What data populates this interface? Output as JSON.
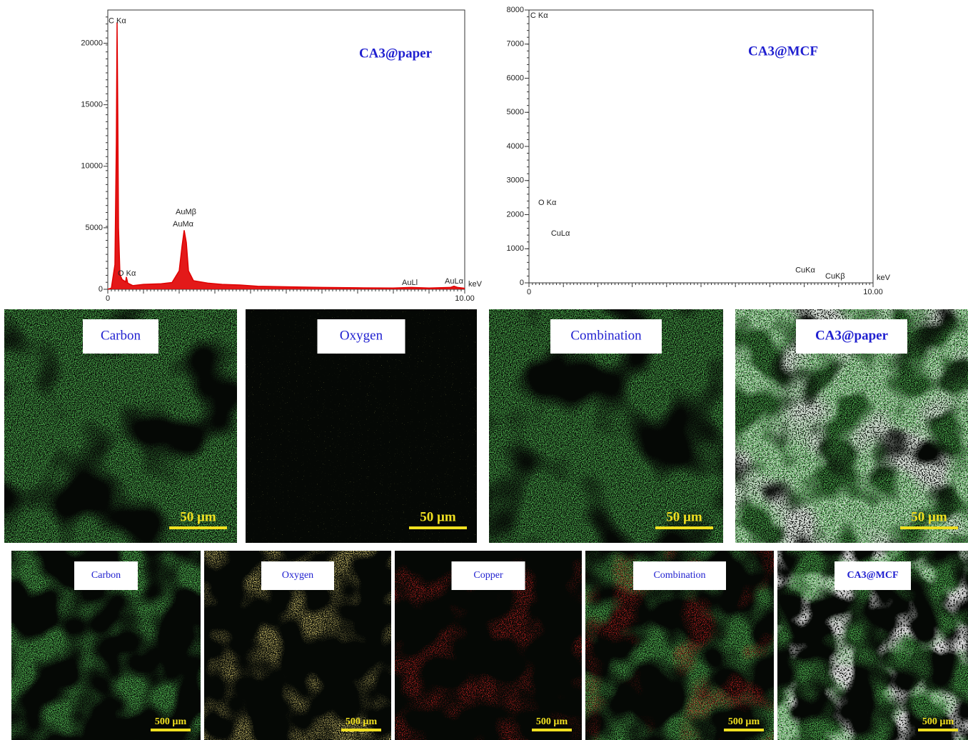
{
  "chart_data": [
    {
      "type": "line",
      "label": "CA3@paper",
      "xlabel": "keV",
      "color": "#e00000",
      "x": [
        0,
        0.1,
        0.2,
        0.24,
        0.26,
        0.28,
        0.3,
        0.34,
        0.4,
        0.5,
        0.52,
        0.56,
        0.7,
        1.0,
        1.5,
        1.8,
        2.0,
        2.08,
        2.14,
        2.2,
        2.26,
        2.4,
        2.8,
        3.2,
        3.7,
        4.2,
        5,
        6,
        7,
        8,
        8.5,
        9,
        9.6,
        9.7,
        9.8,
        10
      ],
      "values": [
        0,
        100,
        2000,
        12000,
        21700,
        14300,
        5000,
        1200,
        800,
        600,
        1000,
        500,
        300,
        400,
        450,
        550,
        1500,
        3500,
        4800,
        3800,
        1500,
        700,
        500,
        400,
        350,
        250,
        200,
        150,
        120,
        100,
        150,
        100,
        150,
        250,
        150,
        80
      ],
      "xlim": [
        0,
        10
      ],
      "ylim": [
        0,
        22700
      ],
      "xticks": [
        0,
        {
          "value": 10,
          "label": "10.00"
        }
      ],
      "yticks": [
        0,
        5000,
        10000,
        15000,
        20000
      ],
      "annotations": [
        {
          "text": "C Kα",
          "x": 0.02,
          "y": 21800
        },
        {
          "text": "O Kα",
          "x": 0.28,
          "y": 1280
        },
        {
          "text": "AuMβ",
          "x": 1.9,
          "y": 6260
        },
        {
          "text": "AuMα",
          "x": 1.82,
          "y": 5270
        },
        {
          "text": "AuLl",
          "x": 8.24,
          "y": 520
        },
        {
          "text": "AuLα",
          "x": 9.44,
          "y": 640
        }
      ]
    },
    {
      "type": "line",
      "label": "CA3@MCF",
      "xlabel": "keV",
      "xlim": [
        0,
        10
      ],
      "ylim": [
        0,
        8000
      ],
      "xticks": [
        0,
        {
          "value": 10,
          "label": "10.00"
        }
      ],
      "yticks": [
        0,
        1000,
        2000,
        3000,
        4000,
        5000,
        6000,
        7000,
        8000
      ],
      "annotations": [
        {
          "text": "C Kα",
          "x": 0.04,
          "y": 7830
        },
        {
          "text": "O Kα",
          "x": 0.27,
          "y": 2340
        },
        {
          "text": "CuLα",
          "x": 0.64,
          "y": 1440
        },
        {
          "text": "CuKα",
          "x": 7.74,
          "y": 360
        },
        {
          "text": "CuKβ",
          "x": 8.61,
          "y": 190
        }
      ]
    }
  ],
  "maps": [
    {
      "scale": "50 µm",
      "panels": [
        "Carbon",
        "Oxygen",
        "Combination",
        "CA3@paper"
      ]
    },
    {
      "scale": "500 µm",
      "panels": [
        "Carbon",
        "Oxygen",
        "Copper",
        "Combination",
        "CA3@MCF"
      ]
    }
  ]
}
